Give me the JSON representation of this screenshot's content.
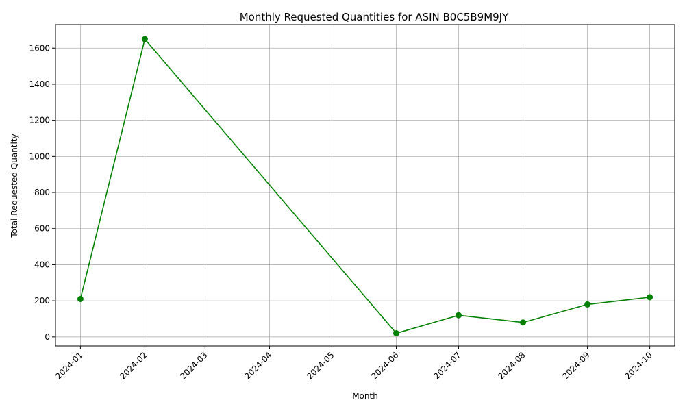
{
  "chart_data": {
    "type": "line",
    "title": "Monthly Requested Quantities for ASIN B0C5B9M9JY",
    "xlabel": "Month",
    "ylabel": "Total Requested Quantity",
    "x_ticks": [
      "2024-01",
      "2024-02",
      "2024-03",
      "2024-04",
      "2024-05",
      "2024-06",
      "2024-07",
      "2024-08",
      "2024-09",
      "2024-10"
    ],
    "y_ticks": [
      0,
      200,
      400,
      600,
      800,
      1000,
      1200,
      1400,
      1600
    ],
    "ylim": [
      -50,
      1730
    ],
    "xlim": [
      "2023-12-20",
      "2024-10-13"
    ],
    "grid": true,
    "series": [
      {
        "color": "#008000",
        "marker": "circle",
        "points": [
          {
            "x": "2024-01",
            "y": 210
          },
          {
            "x": "2024-02",
            "y": 1650
          },
          {
            "x": "2024-06",
            "y": 20
          },
          {
            "x": "2024-07",
            "y": 120
          },
          {
            "x": "2024-08",
            "y": 80
          },
          {
            "x": "2024-09",
            "y": 180
          },
          {
            "x": "2024-10",
            "y": 220
          }
        ]
      }
    ]
  }
}
